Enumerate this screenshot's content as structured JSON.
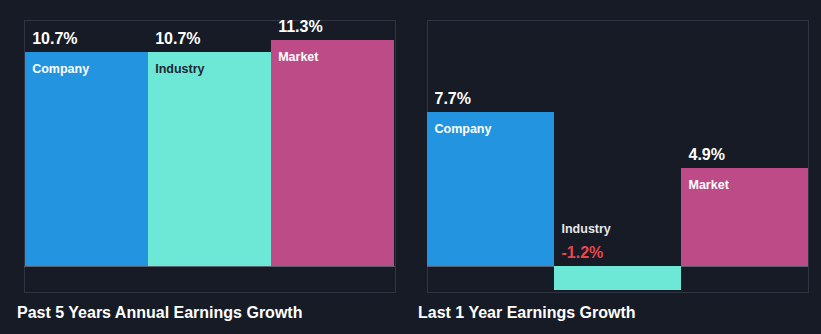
{
  "chart_data": [
    {
      "type": "bar",
      "title": "Past 5 Years Annual Earnings Growth",
      "categories": [
        "Company",
        "Industry",
        "Market"
      ],
      "values": [
        10.7,
        10.7,
        11.3
      ],
      "value_labels": [
        "10.7%",
        "10.7%",
        "11.3%"
      ],
      "colors": [
        "#2394df",
        "#6ee8d6",
        "#bc4b88"
      ],
      "data_labels": true,
      "tick_labels": false,
      "ylim": [
        -1.3,
        12.3
      ],
      "yticks": [
        0
      ],
      "grid": true
    },
    {
      "type": "bar",
      "title": "Last 1 Year Earnings Growth",
      "categories": [
        "Company",
        "Industry",
        "Market"
      ],
      "values": [
        7.7,
        -1.2,
        4.9
      ],
      "value_labels": [
        "7.7%",
        "-1.2%",
        "4.9%"
      ],
      "colors": [
        "#2394df",
        "#6ee8d6",
        "#bc4b88"
      ],
      "data_labels": true,
      "tick_labels": false,
      "ylim": [
        -1.3,
        12.3
      ],
      "yticks": [
        0
      ],
      "grid": true
    }
  ]
}
